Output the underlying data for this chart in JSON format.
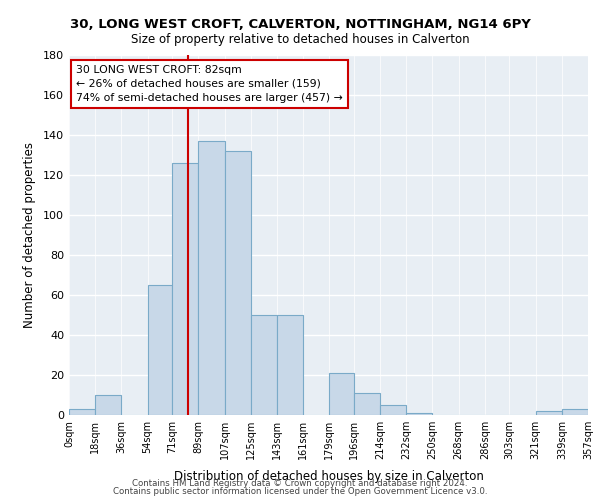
{
  "title1": "30, LONG WEST CROFT, CALVERTON, NOTTINGHAM, NG14 6PY",
  "title2": "Size of property relative to detached houses in Calverton",
  "xlabel": "Distribution of detached houses by size in Calverton",
  "ylabel": "Number of detached properties",
  "bar_edges": [
    0,
    18,
    36,
    54,
    71,
    89,
    107,
    125,
    143,
    161,
    179,
    196,
    214,
    232,
    250,
    268,
    286,
    303,
    321,
    339,
    357
  ],
  "bar_heights": [
    3,
    10,
    0,
    65,
    126,
    137,
    132,
    50,
    50,
    0,
    21,
    11,
    5,
    1,
    0,
    0,
    0,
    0,
    2,
    3
  ],
  "tick_labels": [
    "0sqm",
    "18sqm",
    "36sqm",
    "54sqm",
    "71sqm",
    "89sqm",
    "107sqm",
    "125sqm",
    "143sqm",
    "161sqm",
    "179sqm",
    "196sqm",
    "214sqm",
    "232sqm",
    "250sqm",
    "268sqm",
    "286sqm",
    "303sqm",
    "321sqm",
    "339sqm",
    "357sqm"
  ],
  "bar_color": "#c8d8e8",
  "bar_edge_color": "#7aaac8",
  "property_value": 82,
  "property_line_color": "#cc0000",
  "annotation_line1": "30 LONG WEST CROFT: 82sqm",
  "annotation_line2": "← 26% of detached houses are smaller (159)",
  "annotation_line3": "74% of semi-detached houses are larger (457) →",
  "annotation_box_edge": "#cc0000",
  "ylim": [
    0,
    180
  ],
  "yticks": [
    0,
    20,
    40,
    60,
    80,
    100,
    120,
    140,
    160,
    180
  ],
  "footer1": "Contains HM Land Registry data © Crown copyright and database right 2024.",
  "footer2": "Contains public sector information licensed under the Open Government Licence v3.0.",
  "bg_color": "#e8eef4",
  "grid_color": "#ffffff"
}
